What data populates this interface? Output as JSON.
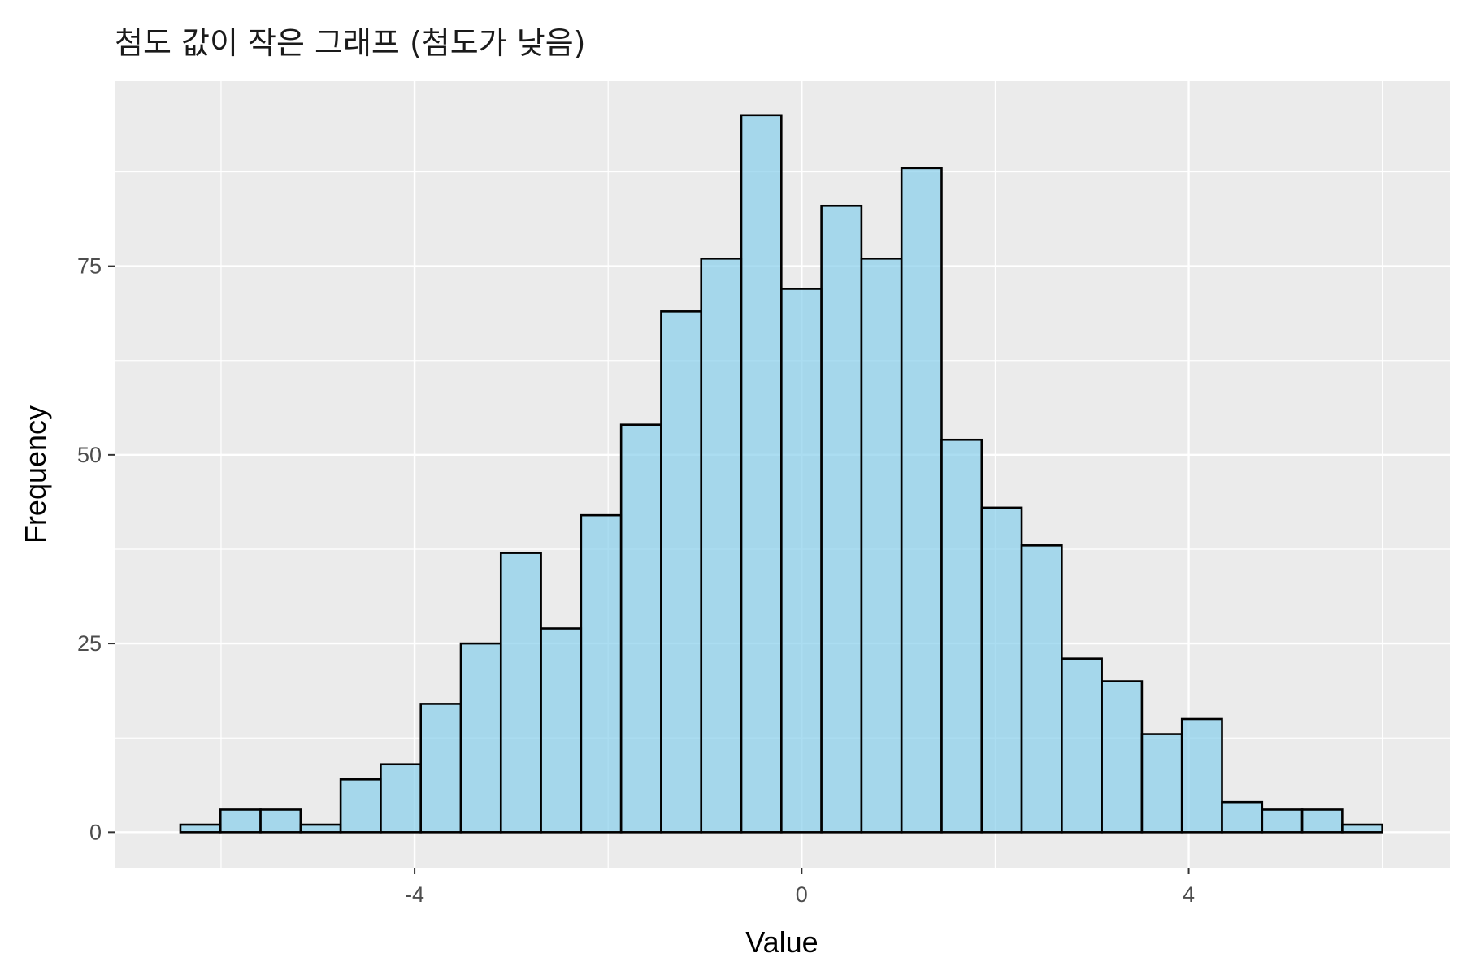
{
  "chart_data": {
    "type": "bar",
    "title": "첨도 값이 작은 그래프 (첨도가 낮음)",
    "xlabel": "Value",
    "ylabel": "Frequency",
    "x_ticks": [
      -4,
      0,
      4
    ],
    "y_ticks": [
      0,
      25,
      50,
      75
    ],
    "xlim": [
      -7.1,
      6.7
    ],
    "ylim": [
      -4.7,
      99.5
    ],
    "bin_width": 0.414,
    "bin_start": -6.42,
    "counts": [
      1,
      3,
      3,
      1,
      7,
      9,
      17,
      25,
      37,
      27,
      42,
      54,
      69,
      76,
      95,
      72,
      83,
      76,
      88,
      52,
      43,
      38,
      23,
      20,
      13,
      15,
      4,
      3,
      3,
      1
    ],
    "fill_color": "#87CEEB",
    "fill_opacity": 0.7,
    "edge_color": "#000000",
    "panel_background": "#EBEBEB",
    "grid": true
  }
}
